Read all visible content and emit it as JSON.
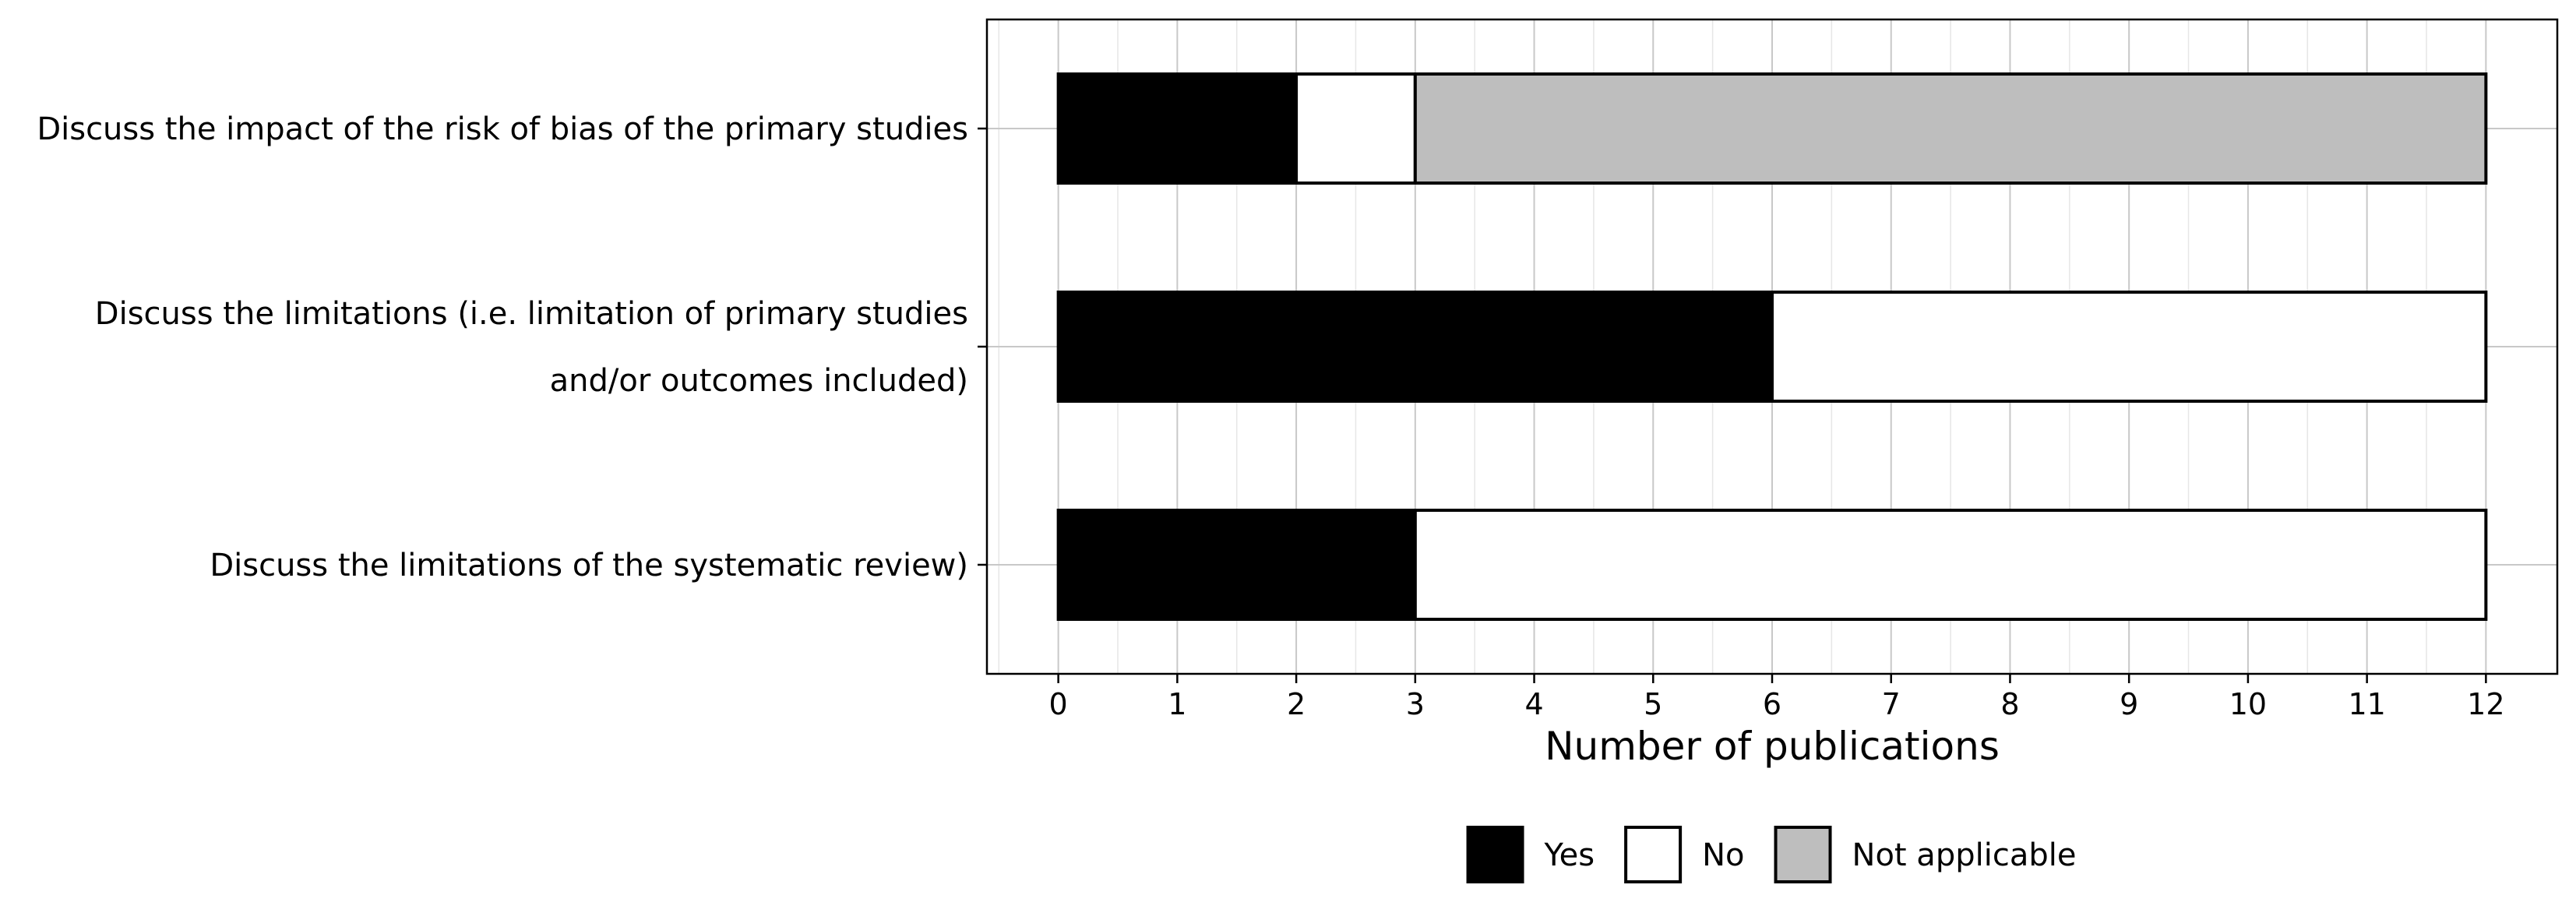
{
  "chart_data": {
    "type": "bar",
    "orientation": "horizontal",
    "stacked": true,
    "xlabel": "Number of publications",
    "ylabel": "",
    "xlim": [
      -0.6,
      12.6
    ],
    "xticks": [
      0,
      1,
      2,
      3,
      4,
      5,
      6,
      7,
      8,
      9,
      10,
      11,
      12
    ],
    "grid": true,
    "legend_position": "bottom",
    "categories": [
      [
        "Discuss the impact of the risk of bias of the primary studies"
      ],
      [
        "Discuss the limitations (i.e. limitation of primary studies",
        "and/or outcomes included)"
      ],
      [
        "Discuss the limitations of the systematic review)"
      ]
    ],
    "series": [
      {
        "name": "Yes",
        "color": "#000000",
        "values": [
          2,
          6,
          3
        ]
      },
      {
        "name": "No",
        "color": "#ffffff",
        "values": [
          1,
          6,
          9
        ]
      },
      {
        "name": "Not applicable",
        "color": "#bebebe",
        "values": [
          9,
          0,
          0
        ]
      }
    ]
  }
}
